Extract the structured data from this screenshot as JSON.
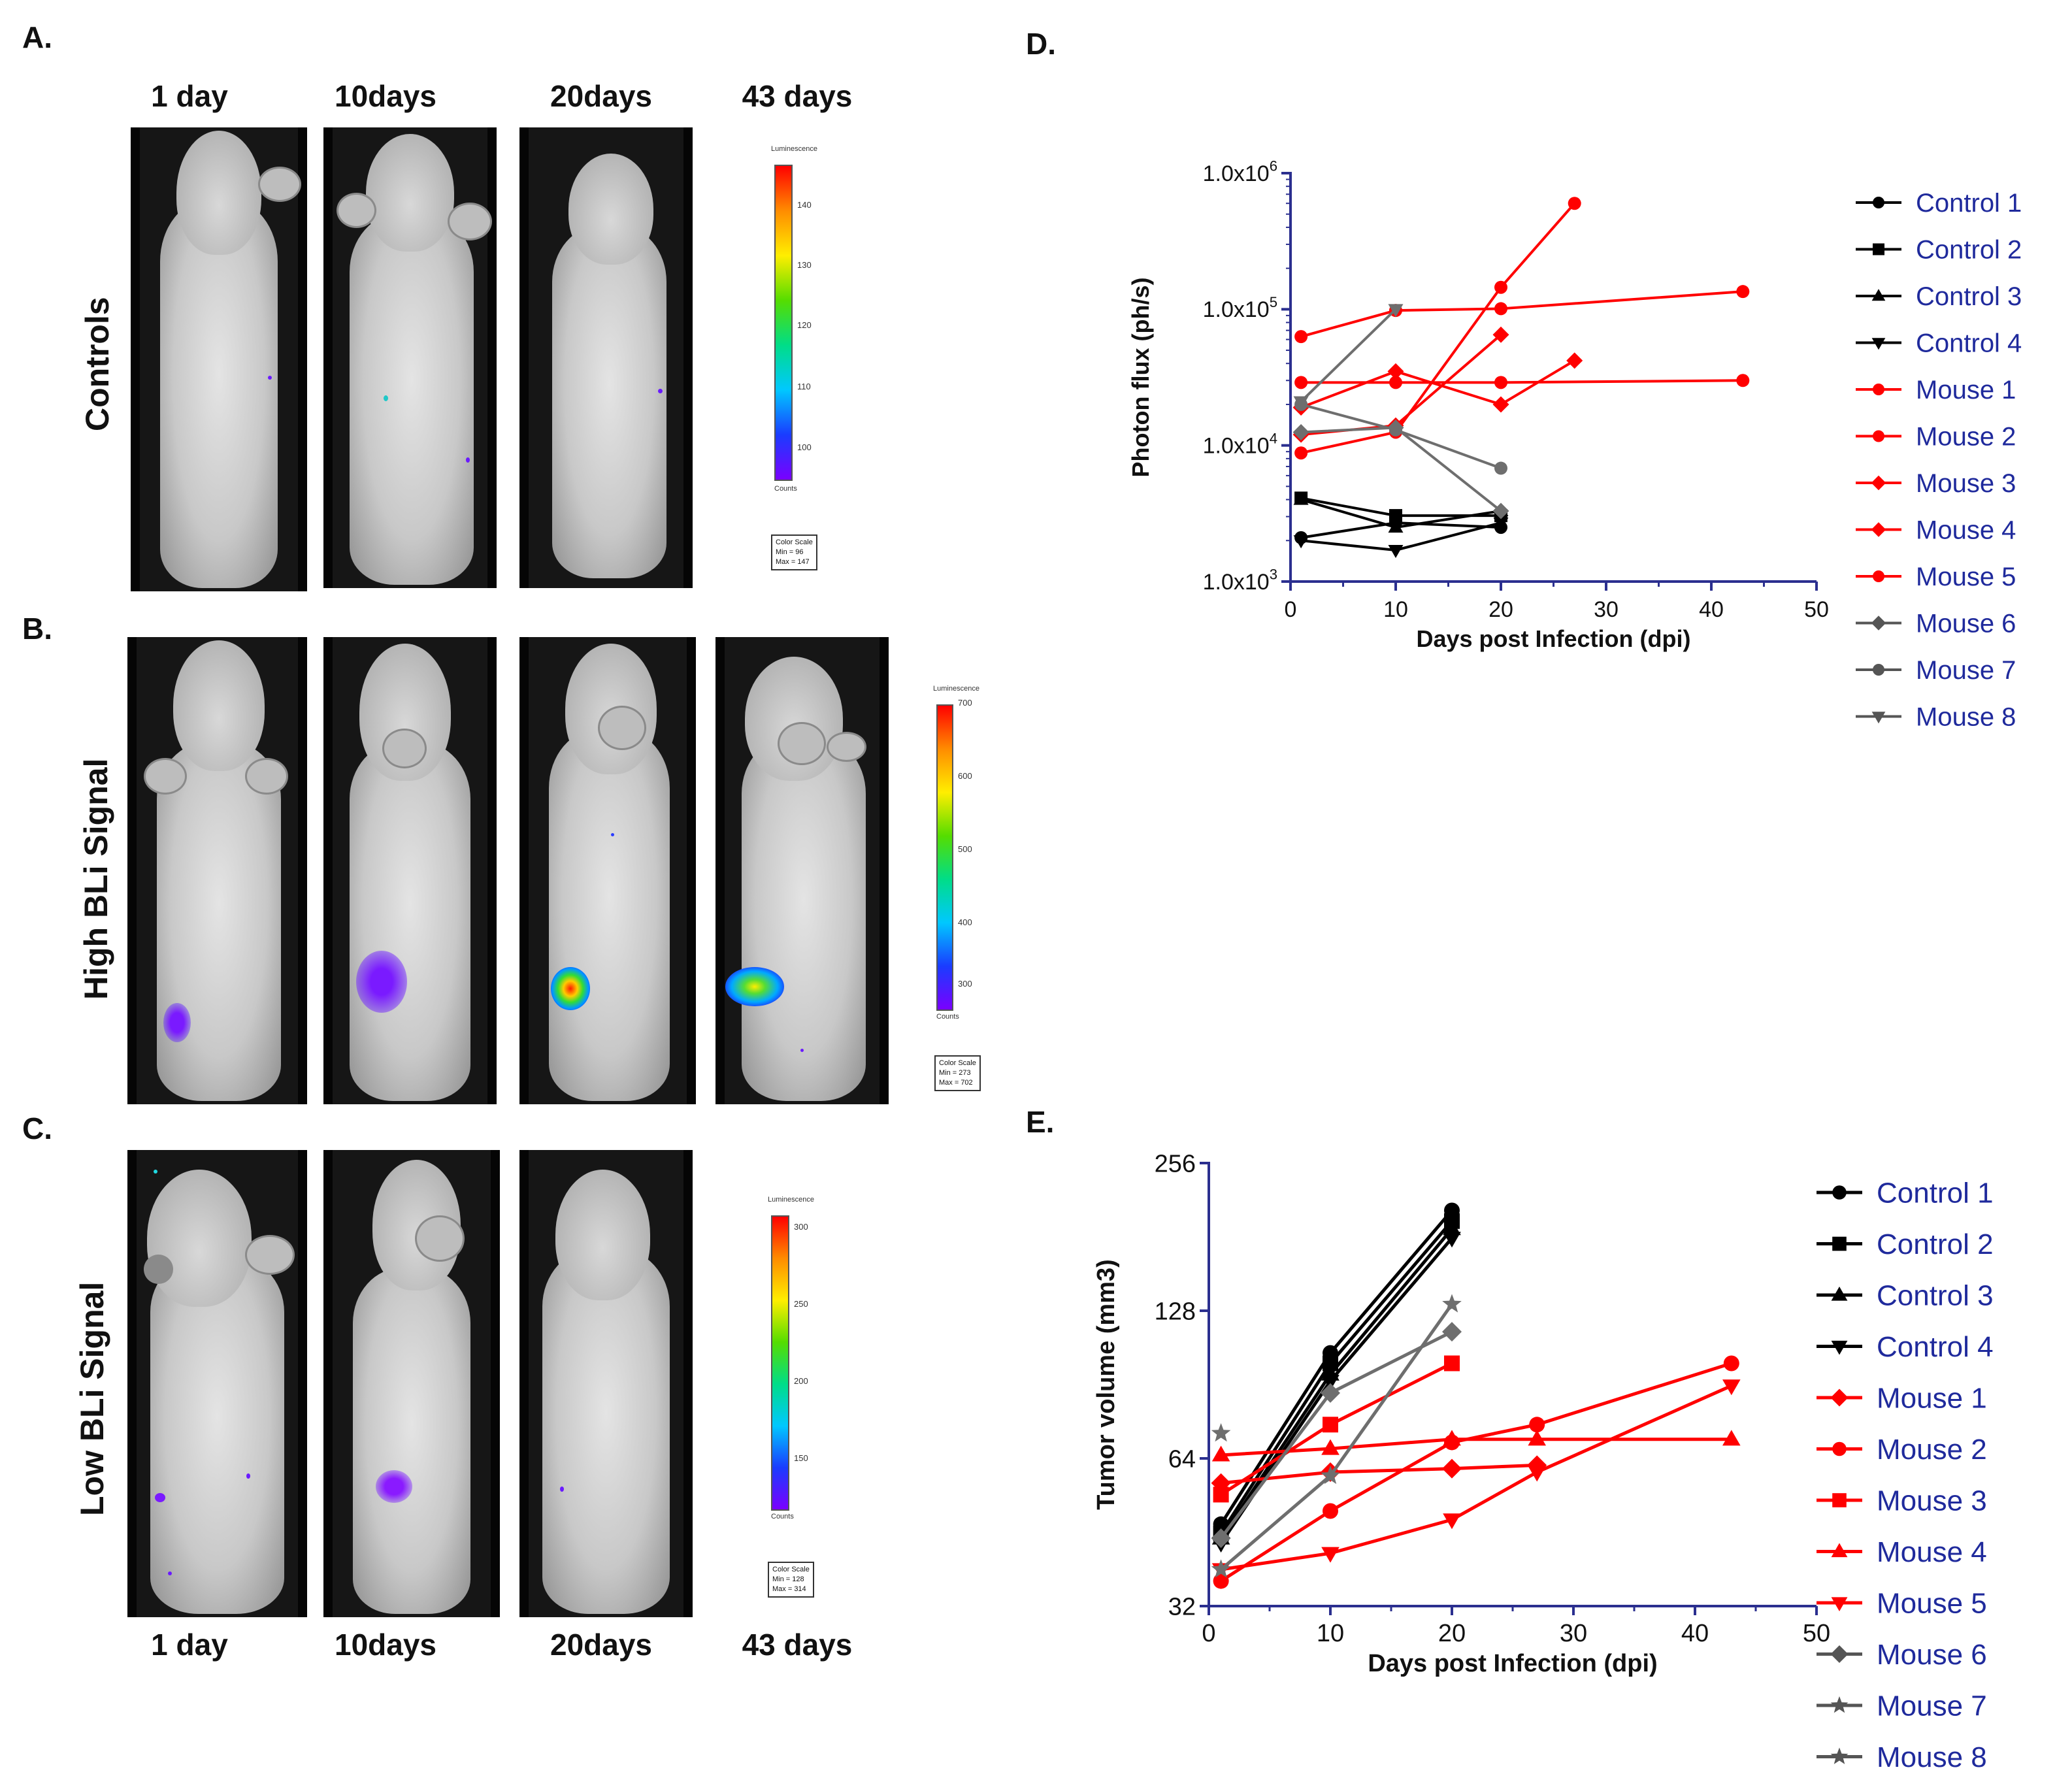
{
  "panels": {
    "A": {
      "letter": "A.",
      "row_label": "Controls",
      "colorbar": {
        "title": "Luminescence",
        "ticks": [
          "140",
          "130",
          "120",
          "110",
          "100"
        ],
        "units": "Counts",
        "scale_title": "Color Scale",
        "scale_min": "Min = 96",
        "scale_max": "Max = 147"
      }
    },
    "B": {
      "letter": "B.",
      "row_label": "High BLi Signal",
      "colorbar": {
        "title": "Luminescence",
        "ticks": [
          "700",
          "600",
          "500",
          "400",
          "300"
        ],
        "units": "Counts",
        "scale_title": "Color Scale",
        "scale_min": "Min = 273",
        "scale_max": "Max = 702"
      }
    },
    "C": {
      "letter": "C.",
      "row_label": "Low BLi Signal",
      "colorbar": {
        "title": "Luminescence",
        "ticks": [
          "300",
          "250",
          "200",
          "150"
        ],
        "units": "Counts",
        "scale_title": "Color Scale",
        "scale_min": "Min = 128",
        "scale_max": "Max = 314"
      }
    },
    "D": {
      "letter": "D."
    },
    "E": {
      "letter": "E."
    }
  },
  "time_labels_top": [
    "1 day",
    "10days",
    "20days",
    "43 days"
  ],
  "time_labels_bottom": [
    "1 day",
    "10days",
    "20days",
    "43 days"
  ],
  "chart_data": [
    {
      "id": "D",
      "type": "line",
      "yscale": "log10",
      "xlabel": "Days post Infection (dpi)",
      "ylabel": "Photon flux (ph/s)",
      "xlim": [
        0,
        50
      ],
      "xticks": [
        "0",
        "10",
        "20",
        "30",
        "40",
        "50"
      ],
      "ylim": [
        1000,
        1000000
      ],
      "yticks": [
        {
          "value": 1000,
          "base": "1.0x10",
          "exp": "3"
        },
        {
          "value": 10000,
          "base": "1.0x10",
          "exp": "4"
        },
        {
          "value": 100000,
          "base": "1.0x10",
          "exp": "5"
        },
        {
          "value": 1000000,
          "base": "1.0x10",
          "exp": "6"
        }
      ],
      "series": [
        {
          "name": "Control 1",
          "color": "#000000",
          "marker": "circle",
          "x": [
            1,
            10,
            20
          ],
          "y": [
            2100,
            2700,
            2500
          ]
        },
        {
          "name": "Control 2",
          "color": "#000000",
          "marker": "square",
          "x": [
            1,
            10,
            20
          ],
          "y": [
            4100,
            3050,
            3050
          ]
        },
        {
          "name": "Control 3",
          "color": "#000000",
          "marker": "triangle-up",
          "x": [
            1,
            10,
            20
          ],
          "y": [
            4000,
            2500,
            3300
          ]
        },
        {
          "name": "Control 4",
          "color": "#000000",
          "marker": "triangle-down",
          "x": [
            1,
            10,
            20
          ],
          "y": [
            2000,
            1700,
            2700
          ]
        },
        {
          "name": "Mouse 1",
          "color": "#ff0000",
          "marker": "circle",
          "x": [
            1,
            10,
            20,
            43
          ],
          "y": [
            29000,
            29000,
            29000,
            30000
          ]
        },
        {
          "name": "Mouse 2",
          "color": "#ff0000",
          "marker": "circle",
          "x": [
            1,
            10,
            20,
            43
          ],
          "y": [
            63000,
            98000,
            101000,
            135000
          ]
        },
        {
          "name": "Mouse 3",
          "color": "#ff0000",
          "marker": "diamond",
          "x": [
            1,
            10,
            20,
            27
          ],
          "y": [
            19000,
            35000,
            20000,
            42000
          ]
        },
        {
          "name": "Mouse 4",
          "color": "#ff0000",
          "marker": "diamond",
          "x": [
            1,
            10,
            20
          ],
          "y": [
            12000,
            14000,
            65000
          ]
        },
        {
          "name": "Mouse 5",
          "color": "#ff0000",
          "marker": "circle",
          "x": [
            1,
            10,
            20,
            27
          ],
          "y": [
            8800,
            12500,
            145000,
            600000
          ]
        },
        {
          "name": "Mouse 6",
          "color": "#6e6e6e",
          "marker": "diamond",
          "x": [
            1,
            10,
            20
          ],
          "y": [
            12500,
            13500,
            3300
          ]
        },
        {
          "name": "Mouse 7",
          "color": "#6e6e6e",
          "marker": "circle",
          "x": [
            1,
            10,
            20
          ],
          "y": [
            20000,
            13000,
            6800
          ]
        },
        {
          "name": "Mouse 8",
          "color": "#6e6e6e",
          "marker": "triangle-down",
          "x": [
            1,
            10
          ],
          "y": [
            21000,
            100000
          ]
        }
      ]
    },
    {
      "id": "E",
      "type": "line",
      "yscale": "log2",
      "xlabel": "Days post Infection (dpi)",
      "ylabel": "Tumor volume (mm3)",
      "xlim": [
        0,
        50
      ],
      "xticks": [
        "0",
        "10",
        "20",
        "30",
        "40",
        "50"
      ],
      "ylim": [
        32,
        256
      ],
      "yticks": [
        {
          "value": 32,
          "label": "32"
        },
        {
          "value": 64,
          "label": "64"
        },
        {
          "value": 128,
          "label": "128"
        },
        {
          "value": 256,
          "label": "256"
        }
      ],
      "series": [
        {
          "name": "Control 1",
          "color": "#000000",
          "marker": "circle",
          "x": [
            1,
            10,
            20
          ],
          "y": [
            47,
            105,
            205
          ]
        },
        {
          "name": "Control 2",
          "color": "#000000",
          "marker": "square",
          "x": [
            1,
            10,
            20
          ],
          "y": [
            45,
            100,
            195
          ]
        },
        {
          "name": "Control 3",
          "color": "#000000",
          "marker": "triangle-up",
          "x": [
            1,
            10,
            20
          ],
          "y": [
            44,
            95,
            188
          ]
        },
        {
          "name": "Control 4",
          "color": "#000000",
          "marker": "triangle-down",
          "x": [
            1,
            10,
            20
          ],
          "y": [
            43,
            92,
            180
          ]
        },
        {
          "name": "Mouse 1",
          "color": "#ff0000",
          "marker": "diamond",
          "x": [
            1,
            10,
            20,
            27
          ],
          "y": [
            57,
            60,
            61,
            62
          ]
        },
        {
          "name": "Mouse 2",
          "color": "#ff0000",
          "marker": "circle",
          "x": [
            1,
            10,
            20,
            27,
            43
          ],
          "y": [
            36,
            50,
            69,
            75,
            100
          ]
        },
        {
          "name": "Mouse 3",
          "color": "#ff0000",
          "marker": "square",
          "x": [
            1,
            10,
            20
          ],
          "y": [
            54,
            75,
            100
          ]
        },
        {
          "name": "Mouse 4",
          "color": "#ff0000",
          "marker": "triangle-up",
          "x": [
            1,
            10,
            20,
            27,
            43
          ],
          "y": [
            65,
            67,
            70,
            70,
            70
          ]
        },
        {
          "name": "Mouse 5",
          "color": "#ff0000",
          "marker": "triangle-down",
          "x": [
            1,
            10,
            20,
            27,
            43
          ],
          "y": [
            38,
            41,
            48,
            60,
            90
          ]
        },
        {
          "name": "Mouse 6",
          "color": "#6e6e6e",
          "marker": "diamond",
          "x": [
            1,
            10,
            20
          ],
          "y": [
            44,
            87,
            116
          ]
        },
        {
          "name": "Mouse 7",
          "color": "#6e6e6e",
          "marker": "star",
          "x": [
            1,
            10,
            20
          ],
          "y": [
            38,
            59,
            132
          ]
        },
        {
          "name": "Mouse 8",
          "color": "#6e6e6e",
          "marker": "star",
          "x": [
            1
          ],
          "y": [
            72
          ]
        }
      ]
    }
  ]
}
